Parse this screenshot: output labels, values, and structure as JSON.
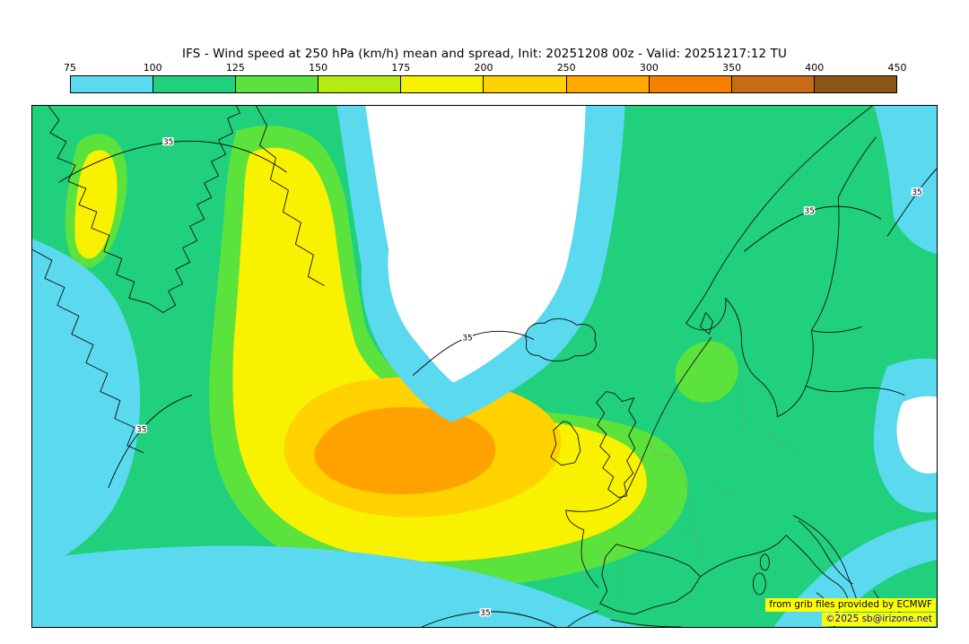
{
  "title": "IFS - Wind speed at 250 hPa (km/h) mean and spread, Init: 20251208 00z - Valid: 20251217:12 TU",
  "colorbar": {
    "tick_labels": [
      "75",
      "100",
      "125",
      "150",
      "175",
      "200",
      "250",
      "300",
      "350",
      "400",
      "450"
    ],
    "segment_colors": [
      "#5ad9ef",
      "#20d07c",
      "#5ce23c",
      "#b4ec14",
      "#f8f200",
      "#ffd200",
      "#ffa800",
      "#f88000",
      "#c96a14",
      "#8a5517"
    ],
    "border_color": "#000000"
  },
  "map": {
    "contour_label": "35",
    "palette": {
      "cyan": "#5ad9ef",
      "green": "#20d07c",
      "light_green": "#5ce23c",
      "yellow": "#f8f200",
      "gold": "#ffd200",
      "orange": "#ffa200",
      "white": "#ffffff",
      "coast": "#111111",
      "border_gray": "#8a8a8a"
    },
    "credits": {
      "line1": "from grib files provided by ECMWF",
      "line2": "©2025 sb@irizone.net",
      "bg": "#ffff00",
      "line1_color": "#000000",
      "line2_color": "#0000cc"
    }
  }
}
